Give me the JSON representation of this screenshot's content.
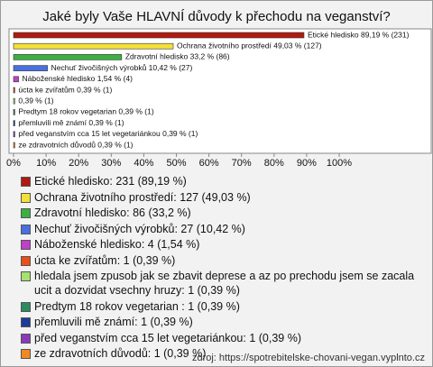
{
  "chart_data": {
    "type": "bar",
    "orientation": "horizontal",
    "title": "Jaké byly Vaše HLAVNÍ důvody k přechodu na veganství?",
    "values": [
      89.19,
      49.03,
      33.2,
      10.42,
      1.54,
      0.39,
      0.39,
      0.39,
      0.39,
      0.39,
      0.39
    ],
    "value_labels": [
      "Etické hledisko 89,19 % (231)",
      "Ochrana životního prostředí 49,03 % (127)",
      "Zdravotní hledisko 33,2 % (86)",
      "Nechuť živočišných výrobků 10,42 % (27)",
      "Náboženské hledisko 1,54 % (4)",
      "úcta ke zvířatům 0,39 % (1)",
      "0,39 % (1)",
      "Predtym 18 rokov vegetarian  0,39 % (1)",
      "přemluvili mě známí 0,39 % (1)",
      "před veganstvím cca 15 let vegetariánkou 0,39 % (1)",
      "ze zdravotních důvodů 0,39 % (1)"
    ],
    "colors": [
      "#b01a10",
      "#f4e03a",
      "#3cb043",
      "#4a6fe0",
      "#c040c8",
      "#e8501a",
      "#a8e070",
      "#2a8a60",
      "#203a9a",
      "#8a3ab8",
      "#f08a20"
    ],
    "legend": [
      "Etické hledisko: 231 (89,19 %)",
      "Ochrana životního prostředí: 127 (49,03 %)",
      "Zdravotní hledisko: 86 (33,2 %)",
      "Nechuť živočišných výrobků: 27 (10,42 %)",
      "Náboženské hledisko: 4 (1,54 %)",
      "úcta ke zvířatům: 1 (0,39 %)",
      "hledala jsem zpusob jak se zbavit deprese a az po prechodu jsem se zacala ucit a dozvidat vsechny hruzy: 1 (0,39 %)",
      "Predtym 18 rokov vegetarian : 1 (0,39 %)",
      "přemluvili mě známí: 1 (0,39 %)",
      "před veganstvím cca 15 let vegetariánkou: 1 (0,39 %)",
      "ze zdravotních důvodů: 1 (0,39 %)"
    ],
    "xlim": [
      0,
      100
    ],
    "xticks": [
      {
        "value": 0,
        "label": "0%"
      },
      {
        "value": 10,
        "label": "10%"
      },
      {
        "value": 20,
        "label": "20%"
      },
      {
        "value": 30,
        "label": "30%"
      },
      {
        "value": 40,
        "label": "40%"
      },
      {
        "value": 50,
        "label": "50%"
      },
      {
        "value": 60,
        "label": "60%"
      },
      {
        "value": 70,
        "label": "70%"
      },
      {
        "value": 80,
        "label": "80%"
      },
      {
        "value": 90,
        "label": "90%"
      },
      {
        "value": 100,
        "label": "100%"
      }
    ],
    "source": "zdroj: https://spotrebitelske-chovani-vegan.vyplnto.cz"
  }
}
